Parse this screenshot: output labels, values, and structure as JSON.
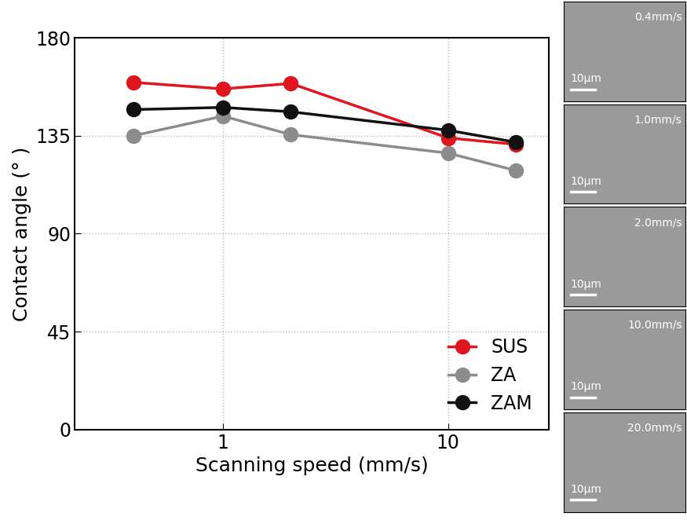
{
  "chart_data": {
    "type": "line",
    "x_label": "Scanning speed (mm/s)",
    "y_label": "Contact angle (° )",
    "x": [
      0.4,
      1,
      2,
      10,
      20
    ],
    "series": [
      {
        "name": "SUS",
        "color": "#e0161e",
        "marker": "o",
        "line_style": "solid",
        "values": [
          159.5,
          156.5,
          159,
          134,
          131
        ]
      },
      {
        "name": "ZA",
        "color": "#8c8c8c",
        "marker": "o",
        "line_style": "solid",
        "values": [
          135,
          144,
          135.5,
          127,
          119
        ]
      },
      {
        "name": "ZAM",
        "color": "#111111",
        "marker": "o",
        "line_style": "solid",
        "values": [
          147,
          148,
          146,
          137.5,
          132
        ]
      }
    ],
    "log": "x",
    "xlim": [
      0.22,
      28
    ],
    "xticks": [
      1,
      10
    ],
    "ylim": [
      0,
      180
    ],
    "yticks": [
      0,
      45,
      90,
      135,
      180
    ],
    "grid": true,
    "legend": "lower right"
  },
  "images": [
    {
      "speed_label": "0.4mm/s",
      "scale_bar": "10μm"
    },
    {
      "speed_label": "1.0mm/s",
      "scale_bar": "10μm"
    },
    {
      "speed_label": "2.0mm/s",
      "scale_bar": "10μm"
    },
    {
      "speed_label": "10.0mm/s",
      "scale_bar": "10μm"
    },
    {
      "speed_label": "20.0mm/s",
      "scale_bar": "10μm"
    }
  ]
}
